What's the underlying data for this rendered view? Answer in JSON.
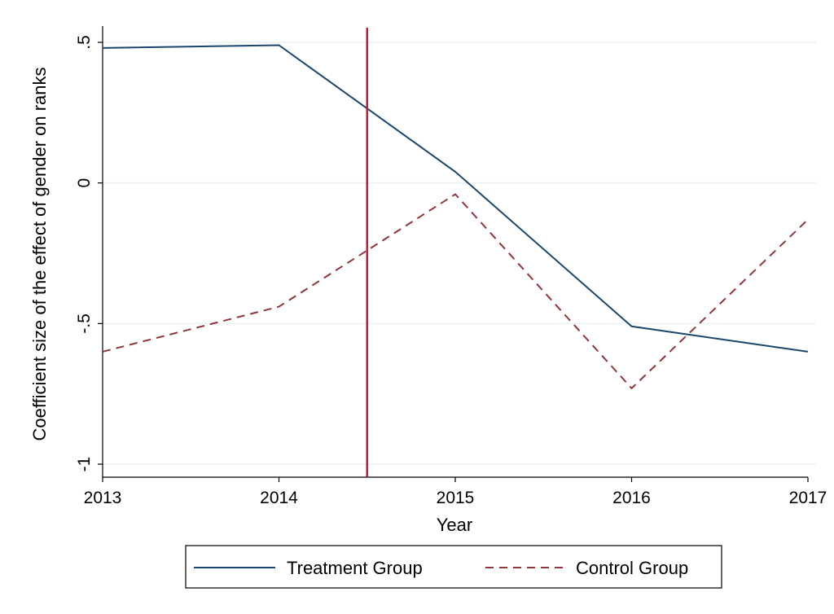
{
  "chart_data": {
    "type": "line",
    "title": "",
    "xlabel": "Year",
    "ylabel": "Coefficient size of the effect of gender on ranks",
    "x": [
      2013,
      2014,
      2015,
      2016,
      2017
    ],
    "xlim": [
      2013,
      2017
    ],
    "ylim": [
      -1,
      0.5
    ],
    "x_ticks": [
      2013,
      2014,
      2015,
      2016,
      2017
    ],
    "x_tick_labels": [
      "2013",
      "2014",
      "2015",
      "2016",
      "2017"
    ],
    "y_ticks": [
      -1,
      -0.5,
      0,
      0.5
    ],
    "y_tick_labels": [
      "-1",
      "-.5",
      "0",
      ".5"
    ],
    "grid": true,
    "legend_position": "bottom",
    "reference_line": {
      "orientation": "vertical",
      "x": 2014.5,
      "color": "#c8102e"
    },
    "series": [
      {
        "name": "Treatment Group",
        "values": [
          0.48,
          0.49,
          0.04,
          -0.51,
          -0.6
        ],
        "color": "#1a476f",
        "style": "solid"
      },
      {
        "name": "Control Group",
        "values": [
          -0.6,
          -0.44,
          -0.04,
          -0.73,
          -0.13
        ],
        "color": "#90353b",
        "style": "dashed"
      }
    ]
  }
}
